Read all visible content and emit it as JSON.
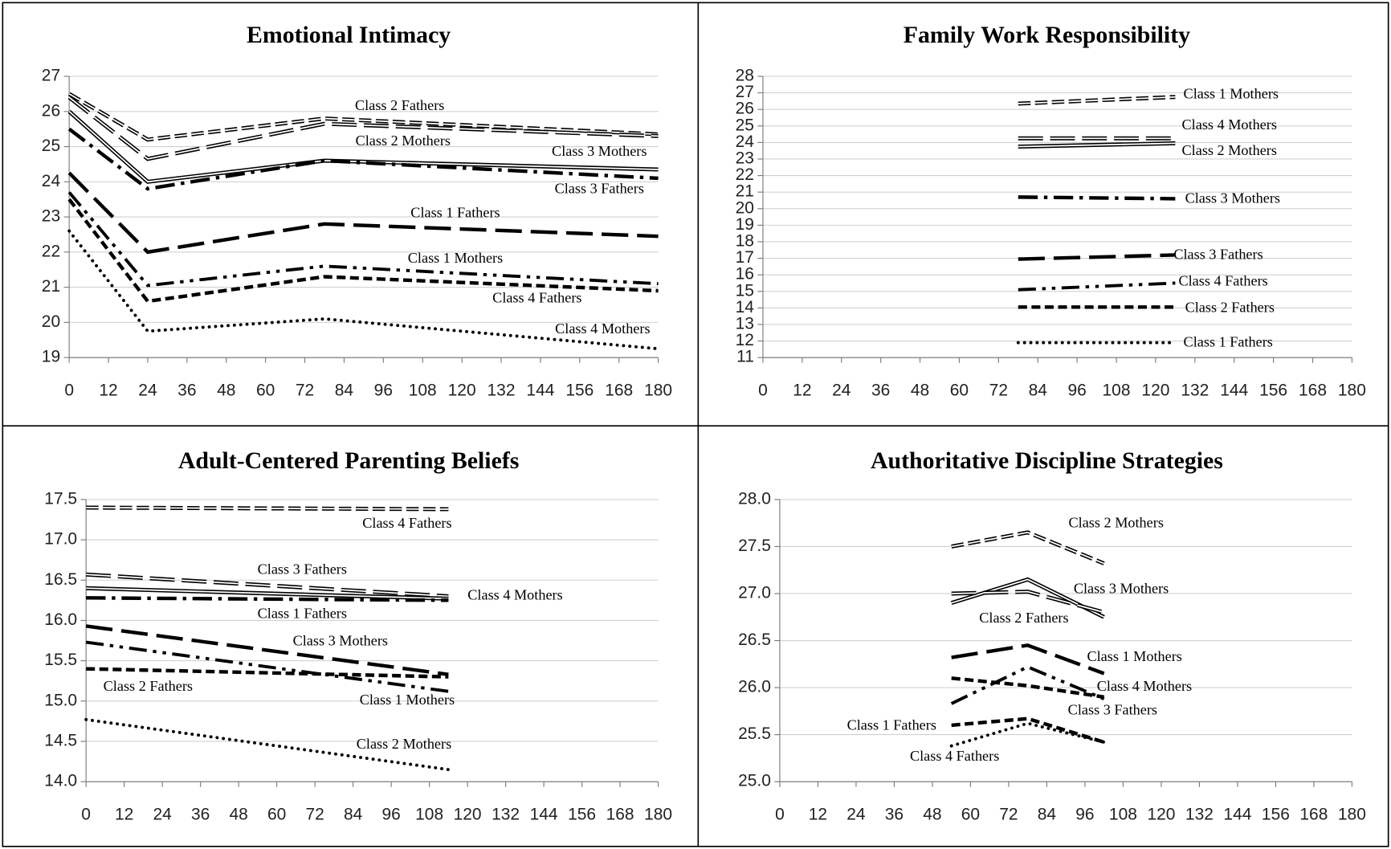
{
  "chart_data": [
    {
      "type": "line",
      "title": "Emotional Intimacy",
      "x": [
        0,
        24,
        78,
        180
      ],
      "xlim": [
        0,
        180
      ],
      "xticks": [
        0,
        12,
        24,
        36,
        48,
        60,
        72,
        84,
        96,
        108,
        120,
        132,
        144,
        156,
        168,
        180
      ],
      "ylim": [
        19,
        27
      ],
      "yticks": [
        19,
        20,
        21,
        22,
        23,
        24,
        25,
        26,
        27
      ],
      "grid": true,
      "series": [
        {
          "name": "Class 2 Fathers",
          "color": "#000000",
          "style": "double-dash",
          "values": [
            26.5,
            25.2,
            25.8,
            25.35
          ]
        },
        {
          "name": "Class 2 Mothers",
          "color": "#000000",
          "style": "double-long-dash",
          "values": [
            26.4,
            24.65,
            25.65,
            25.3
          ]
        },
        {
          "name": "Class 3 Mothers",
          "color": "#000000",
          "style": "double-solid",
          "values": [
            26.0,
            24.0,
            24.6,
            24.35
          ]
        },
        {
          "name": "Class 3 Fathers",
          "color": "#000000",
          "style": "dash-dot",
          "values": [
            25.5,
            23.8,
            24.6,
            24.1
          ]
        },
        {
          "name": "Class 1 Fathers",
          "color": "#000000",
          "style": "long-dash",
          "values": [
            24.25,
            22.0,
            22.8,
            22.45
          ]
        },
        {
          "name": "Class 1 Mothers",
          "color": "#000000",
          "style": "dash-dot-dot",
          "values": [
            23.7,
            21.05,
            21.6,
            21.1
          ]
        },
        {
          "name": "Class 4 Fathers",
          "color": "#000000",
          "style": "dash",
          "values": [
            23.5,
            20.6,
            21.3,
            20.9
          ]
        },
        {
          "name": "Class 4 Mothers",
          "color": "#000000",
          "style": "dot",
          "values": [
            22.6,
            19.75,
            20.1,
            19.25
          ]
        }
      ]
    },
    {
      "type": "line",
      "title": "Family Work Responsibility",
      "x": [
        78,
        126
      ],
      "xlim": [
        0,
        180
      ],
      "xticks": [
        0,
        12,
        24,
        36,
        48,
        60,
        72,
        84,
        96,
        108,
        120,
        132,
        144,
        156,
        168,
        180
      ],
      "ylim": [
        11,
        28
      ],
      "yticks": [
        11,
        12,
        13,
        14,
        15,
        16,
        17,
        18,
        19,
        20,
        21,
        22,
        23,
        24,
        25,
        26,
        27,
        28
      ],
      "grid": true,
      "series": [
        {
          "name": "Class 1 Mothers",
          "color": "#000000",
          "style": "double-dash",
          "values": [
            26.35,
            26.75
          ]
        },
        {
          "name": "Class 4 Mothers",
          "color": "#000000",
          "style": "double-long-dash",
          "values": [
            24.25,
            24.25
          ]
        },
        {
          "name": "Class 2 Mothers",
          "color": "#000000",
          "style": "double-solid",
          "values": [
            23.75,
            23.95
          ]
        },
        {
          "name": "Class 3 Mothers",
          "color": "#000000",
          "style": "dash-dot",
          "values": [
            20.7,
            20.6
          ]
        },
        {
          "name": "Class 3 Fathers",
          "color": "#000000",
          "style": "long-dash",
          "values": [
            16.95,
            17.2
          ]
        },
        {
          "name": "Class 4 Fathers",
          "color": "#000000",
          "style": "dash-dot-dot",
          "values": [
            15.1,
            15.5
          ]
        },
        {
          "name": "Class 2 Fathers",
          "color": "#000000",
          "style": "dash",
          "values": [
            14.05,
            14.05
          ]
        },
        {
          "name": "Class 1 Fathers",
          "color": "#000000",
          "style": "dot",
          "values": [
            11.9,
            11.9
          ]
        }
      ]
    },
    {
      "type": "line",
      "title": "Adult-Centered Parenting Beliefs",
      "x": [
        0,
        114
      ],
      "xlim": [
        0,
        180
      ],
      "xticks": [
        0,
        12,
        24,
        36,
        48,
        60,
        72,
        84,
        96,
        108,
        120,
        132,
        144,
        156,
        168,
        180
      ],
      "ylim": [
        14,
        17.5
      ],
      "yticks": [
        {
          "value": 14,
          "label": "14.0"
        },
        14.5,
        {
          "value": 15,
          "label": "15.0"
        },
        15.5,
        {
          "value": 16,
          "label": "16.0"
        },
        16.5,
        {
          "value": 17,
          "label": "17.0"
        },
        17.5
      ],
      "grid": true,
      "series": [
        {
          "name": "Class 4 Fathers",
          "color": "#000000",
          "style": "double-dash",
          "values": [
            17.4,
            17.38
          ]
        },
        {
          "name": "Class 3 Fathers",
          "color": "#000000",
          "style": "double-long-dash",
          "values": [
            16.57,
            16.3
          ]
        },
        {
          "name": "Class 4 Mothers",
          "color": "#000000",
          "style": "double-solid",
          "values": [
            16.4,
            16.27
          ]
        },
        {
          "name": "Class 1 Fathers",
          "color": "#000000",
          "style": "dash-dot",
          "values": [
            16.28,
            16.25
          ]
        },
        {
          "name": "Class 3 Mothers",
          "color": "#000000",
          "style": "long-dash",
          "values": [
            15.93,
            15.33
          ]
        },
        {
          "name": "Class 1 Mothers",
          "color": "#000000",
          "style": "dash-dot-dot",
          "values": [
            15.73,
            15.12
          ]
        },
        {
          "name": "Class 2 Fathers",
          "color": "#000000",
          "style": "dash",
          "values": [
            15.4,
            15.3
          ]
        },
        {
          "name": "Class 2 Mothers",
          "color": "#000000",
          "style": "dot",
          "values": [
            14.77,
            14.15
          ]
        }
      ]
    },
    {
      "type": "line",
      "title": "Authoritative Discipline Strategies",
      "x": [
        54,
        78,
        102
      ],
      "xlim": [
        0,
        180
      ],
      "xticks": [
        0,
        12,
        24,
        36,
        48,
        60,
        72,
        84,
        96,
        108,
        120,
        132,
        144,
        156,
        168,
        180
      ],
      "ylim": [
        25,
        28
      ],
      "yticks": [
        {
          "value": 25,
          "label": "25.0"
        },
        25.5,
        {
          "value": 26,
          "label": "26.0"
        },
        26.5,
        {
          "value": 27,
          "label": "27.0"
        },
        27.5,
        {
          "value": 28,
          "label": "28.0"
        }
      ],
      "grid": true,
      "series": [
        {
          "name": "Class 2 Mothers",
          "color": "#000000",
          "style": "double-dash",
          "values": [
            27.5,
            27.65,
            27.32
          ]
        },
        {
          "name": "Class 3 Mothers",
          "color": "#000000",
          "style": "double-solid",
          "values": [
            26.9,
            27.15,
            26.75
          ]
        },
        {
          "name": "Class 2 Fathers",
          "color": "#000000",
          "style": "double-long-dash",
          "values": [
            27.0,
            27.02,
            26.8
          ]
        },
        {
          "name": "Class 1 Mothers",
          "color": "#000000",
          "style": "long-dash",
          "values": [
            26.32,
            26.45,
            26.15
          ]
        },
        {
          "name": "Class 4 Mothers",
          "color": "#000000",
          "style": "dash",
          "values": [
            26.1,
            26.02,
            25.9
          ]
        },
        {
          "name": "Class 3 Fathers",
          "color": "#000000",
          "style": "dash-dot-dot",
          "values": [
            25.83,
            26.22,
            25.88
          ]
        },
        {
          "name": "Class 1 Fathers",
          "color": "#000000",
          "style": "dash",
          "values": [
            25.6,
            25.67,
            25.42
          ]
        },
        {
          "name": "Class 4 Fathers",
          "color": "#000000",
          "style": "dot",
          "values": [
            25.38,
            25.62,
            25.42
          ]
        }
      ]
    }
  ]
}
